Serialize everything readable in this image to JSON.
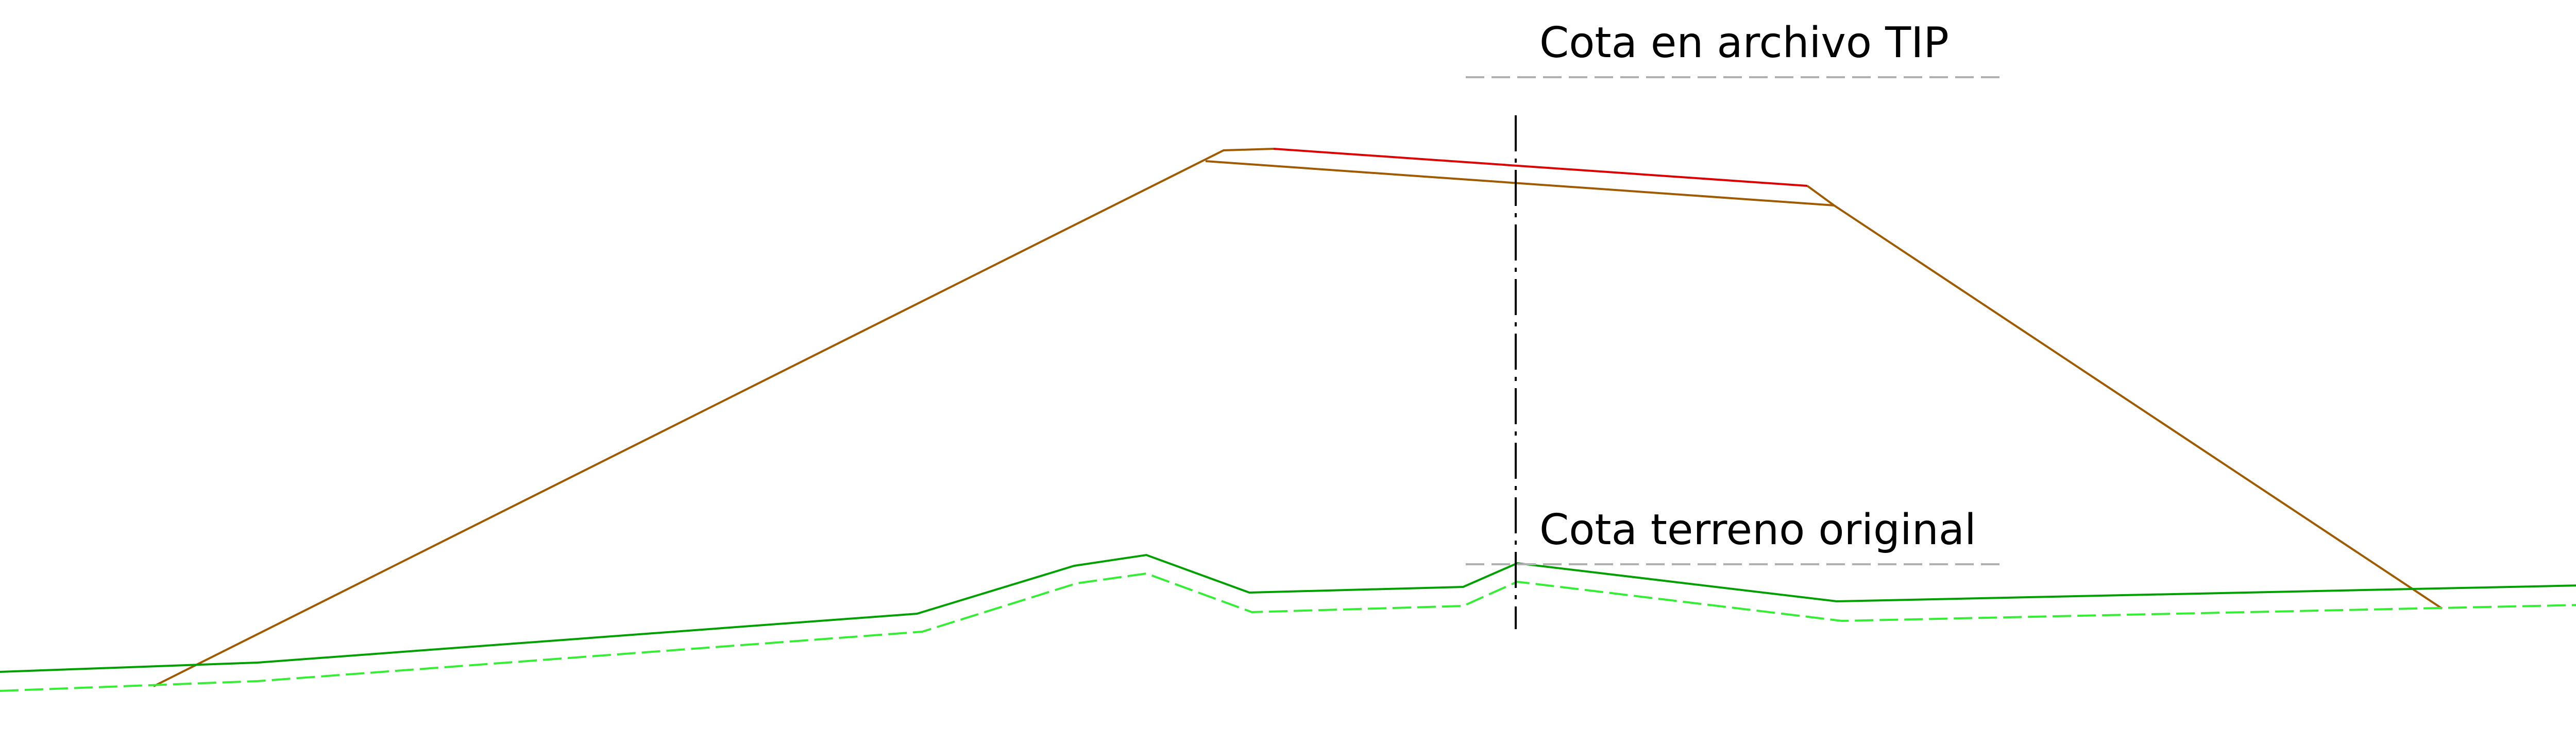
{
  "labels": {
    "design_elevation": "Cota en archivo TIP",
    "original_ground": "Cota terreno original"
  },
  "colors": {
    "background": "#ffffff",
    "embankment_profile": "#a05a00",
    "crown_surface": "#dd0000",
    "original_ground": "#00a000",
    "offset_ground": "#33ee33",
    "axis": "#000000",
    "label_underline": "#b0b0b0",
    "text": "#000000"
  }
}
